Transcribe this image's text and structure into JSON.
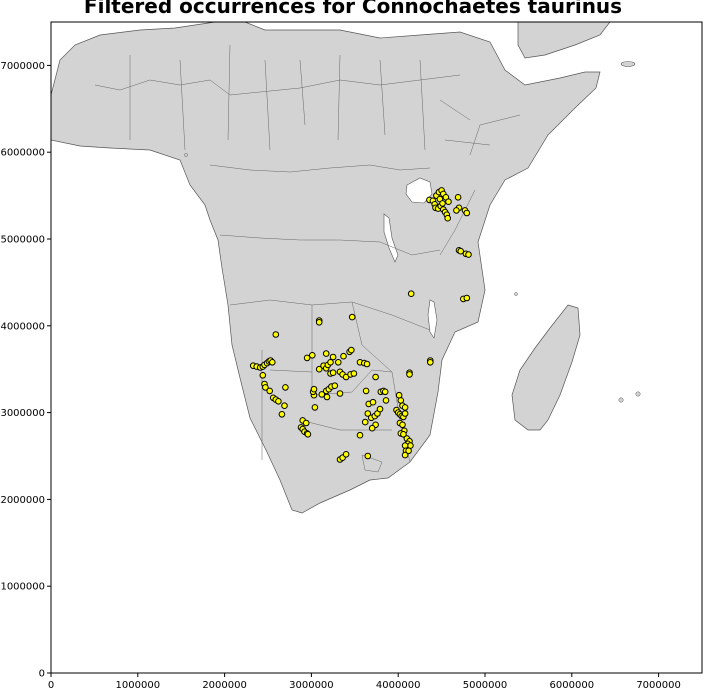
{
  "title": "Filtered occurrences for Connochaetes taurinus",
  "chart_data": {
    "type": "scatter",
    "title": "Filtered occurrences for Connochaetes taurinus",
    "xlabel": "",
    "ylabel": "",
    "xlim": [
      0,
      7500000
    ],
    "ylim": [
      0,
      7500000
    ],
    "x_ticks": [
      "0",
      "1000000",
      "2000000",
      "3000000",
      "4000000",
      "5000000",
      "6000000",
      "7000000"
    ],
    "y_ticks": [
      "0",
      "1000000",
      "2000000",
      "3000000",
      "4000000",
      "5000000",
      "6000000",
      "7000000"
    ],
    "grid": false,
    "land_color": "#d3d3d3",
    "border_color": "#555555",
    "marker_fill": "#ffff00",
    "marker_edge": "#000000",
    "series": [
      {
        "points": [
          [
            2590000,
            3900000
          ],
          [
            3090000,
            4060000
          ],
          [
            3090000,
            4040000
          ],
          [
            3470000,
            4100000
          ],
          [
            4150000,
            4370000
          ],
          [
            4750000,
            4310000
          ],
          [
            4790000,
            4320000
          ],
          [
            4370000,
            3600000
          ],
          [
            4370000,
            3580000
          ],
          [
            4130000,
            3460000
          ],
          [
            4130000,
            3440000
          ],
          [
            2330000,
            3540000
          ],
          [
            2370000,
            3530000
          ],
          [
            2410000,
            3520000
          ],
          [
            2440000,
            3530000
          ],
          [
            2460000,
            3550000
          ],
          [
            2490000,
            3570000
          ],
          [
            2510000,
            3590000
          ],
          [
            2530000,
            3600000
          ],
          [
            2550000,
            3580000
          ],
          [
            2440000,
            3430000
          ],
          [
            2460000,
            3330000
          ],
          [
            2470000,
            3290000
          ],
          [
            2520000,
            3250000
          ],
          [
            2560000,
            3170000
          ],
          [
            2590000,
            3150000
          ],
          [
            2620000,
            3130000
          ],
          [
            2690000,
            3080000
          ],
          [
            2700000,
            3290000
          ],
          [
            2660000,
            2980000
          ],
          [
            2950000,
            3630000
          ],
          [
            3010000,
            3660000
          ],
          [
            3090000,
            3500000
          ],
          [
            3140000,
            3540000
          ],
          [
            3170000,
            3510000
          ],
          [
            3190000,
            3550000
          ],
          [
            3220000,
            3580000
          ],
          [
            3170000,
            3680000
          ],
          [
            3250000,
            3640000
          ],
          [
            3310000,
            3580000
          ],
          [
            3370000,
            3650000
          ],
          [
            3440000,
            3700000
          ],
          [
            3460000,
            3720000
          ],
          [
            3330000,
            3470000
          ],
          [
            3360000,
            3440000
          ],
          [
            3400000,
            3410000
          ],
          [
            3450000,
            3440000
          ],
          [
            3490000,
            3450000
          ],
          [
            3560000,
            3580000
          ],
          [
            3610000,
            3570000
          ],
          [
            3640000,
            3560000
          ],
          [
            3630000,
            3250000
          ],
          [
            3740000,
            3410000
          ],
          [
            3220000,
            3450000
          ],
          [
            3250000,
            3460000
          ],
          [
            3170000,
            3250000
          ],
          [
            3200000,
            3270000
          ],
          [
            3230000,
            3300000
          ],
          [
            3270000,
            3310000
          ],
          [
            3330000,
            3220000
          ],
          [
            3120000,
            3210000
          ],
          [
            3180000,
            3180000
          ],
          [
            3030000,
            3200000
          ],
          [
            3020000,
            3240000
          ],
          [
            3040000,
            3060000
          ],
          [
            3030000,
            3270000
          ],
          [
            2880000,
            2830000
          ],
          [
            2900000,
            2810000
          ],
          [
            2920000,
            2780000
          ],
          [
            2950000,
            2760000
          ],
          [
            2960000,
            2750000
          ],
          [
            2900000,
            2910000
          ],
          [
            2940000,
            2880000
          ],
          [
            3330000,
            2460000
          ],
          [
            3360000,
            2480000
          ],
          [
            3400000,
            2520000
          ],
          [
            3650000,
            2500000
          ],
          [
            3560000,
            2740000
          ],
          [
            3620000,
            2890000
          ],
          [
            3660000,
            3100000
          ],
          [
            3710000,
            3120000
          ],
          [
            3650000,
            2990000
          ],
          [
            3690000,
            2940000
          ],
          [
            3730000,
            2960000
          ],
          [
            3760000,
            2990000
          ],
          [
            3790000,
            3040000
          ],
          [
            3740000,
            2860000
          ],
          [
            3700000,
            2820000
          ],
          [
            3800000,
            3240000
          ],
          [
            3830000,
            3250000
          ],
          [
            3850000,
            3240000
          ],
          [
            3860000,
            3140000
          ],
          [
            3980000,
            3030000
          ],
          [
            4000000,
            3000000
          ],
          [
            4020000,
            2980000
          ],
          [
            4040000,
            2960000
          ],
          [
            4060000,
            2950000
          ],
          [
            4080000,
            2990000
          ],
          [
            4050000,
            3080000
          ],
          [
            4030000,
            3140000
          ],
          [
            4010000,
            3200000
          ],
          [
            4080000,
            3060000
          ],
          [
            4020000,
            2880000
          ],
          [
            4050000,
            2860000
          ],
          [
            4070000,
            2790000
          ],
          [
            4030000,
            2760000
          ],
          [
            4060000,
            2750000
          ],
          [
            4100000,
            2700000
          ],
          [
            4130000,
            2670000
          ],
          [
            4110000,
            2640000
          ],
          [
            4140000,
            2620000
          ],
          [
            4080000,
            2620000
          ],
          [
            4090000,
            2560000
          ],
          [
            4120000,
            2560000
          ],
          [
            4080000,
            2510000
          ],
          [
            4360000,
            5450000
          ],
          [
            4400000,
            5440000
          ],
          [
            4420000,
            5400000
          ],
          [
            4430000,
            5360000
          ],
          [
            4460000,
            5350000
          ],
          [
            4490000,
            5380000
          ],
          [
            4520000,
            5340000
          ],
          [
            4540000,
            5310000
          ],
          [
            4560000,
            5280000
          ],
          [
            4570000,
            5240000
          ],
          [
            4440000,
            5500000
          ],
          [
            4470000,
            5540000
          ],
          [
            4500000,
            5560000
          ],
          [
            4520000,
            5520000
          ],
          [
            4550000,
            5480000
          ],
          [
            4580000,
            5430000
          ],
          [
            4480000,
            5460000
          ],
          [
            4510000,
            5410000
          ],
          [
            4690000,
            5480000
          ],
          [
            4700000,
            5360000
          ],
          [
            4670000,
            5330000
          ],
          [
            4770000,
            5330000
          ],
          [
            4790000,
            5300000
          ],
          [
            4700000,
            4870000
          ],
          [
            4720000,
            4860000
          ],
          [
            4780000,
            4830000
          ],
          [
            4810000,
            4820000
          ]
        ]
      }
    ]
  }
}
